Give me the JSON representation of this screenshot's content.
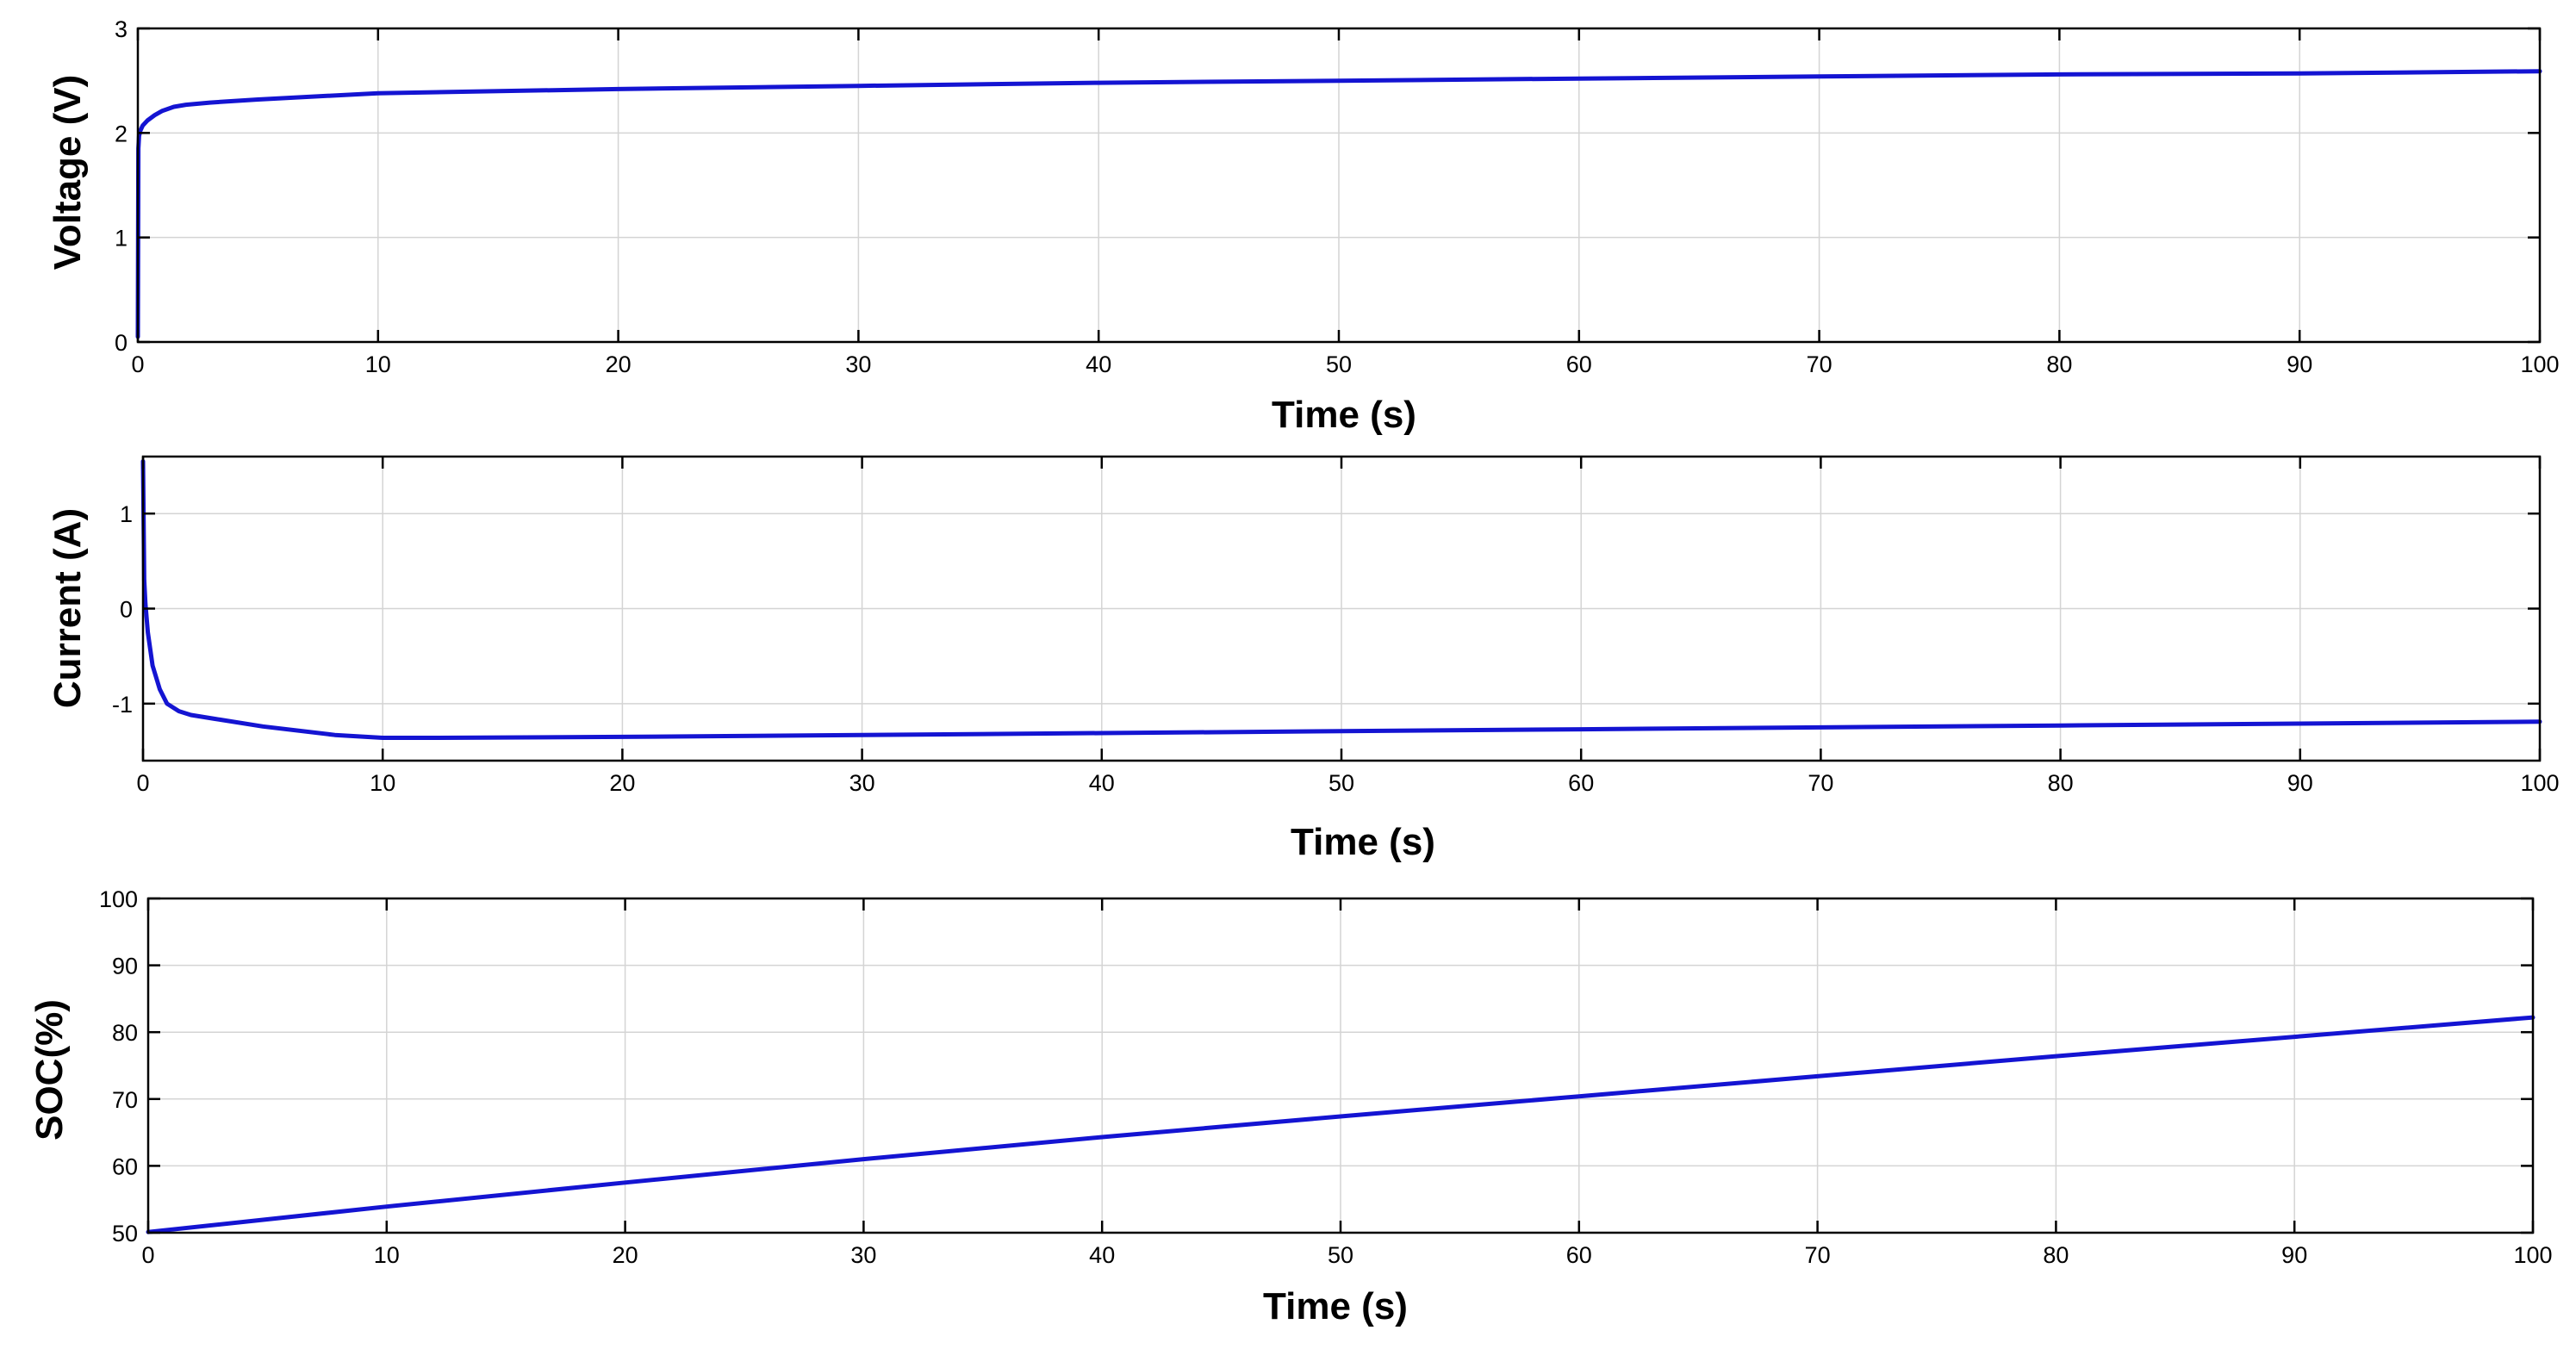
{
  "colors": {
    "series": "#1414d2",
    "grid": "#d4d4d4",
    "frame": "#000000"
  },
  "chart_data": [
    {
      "type": "line",
      "xlabel": "Time (s)",
      "ylabel": "Voltage (V)",
      "xlim": [
        0,
        100
      ],
      "ylim": [
        0,
        3
      ],
      "xticks": [
        0,
        10,
        20,
        30,
        40,
        50,
        60,
        70,
        80,
        90,
        100
      ],
      "yticks": [
        0,
        1,
        2,
        3
      ],
      "grid": true,
      "series": [
        {
          "x": [
            0,
            0.02,
            0.05,
            0.1,
            0.2,
            0.4,
            0.7,
            1,
            1.5,
            2,
            3,
            5,
            10,
            20,
            30,
            40,
            50,
            60,
            70,
            80,
            90,
            100
          ],
          "values": [
            0.05,
            1.85,
            1.97,
            2.02,
            2.07,
            2.12,
            2.17,
            2.21,
            2.25,
            2.27,
            2.29,
            2.32,
            2.38,
            2.42,
            2.45,
            2.48,
            2.5,
            2.52,
            2.54,
            2.56,
            2.57,
            2.59
          ]
        }
      ]
    },
    {
      "type": "line",
      "xlabel": "Time (s)",
      "ylabel": "Current (A)",
      "xlim": [
        0,
        100
      ],
      "ylim": [
        -1.6,
        1.6
      ],
      "xticks": [
        0,
        10,
        20,
        30,
        40,
        50,
        60,
        70,
        80,
        90,
        100
      ],
      "yticks": [
        -1,
        0,
        1
      ],
      "grid": true,
      "series": [
        {
          "x": [
            0,
            0.05,
            0.1,
            0.2,
            0.4,
            0.7,
            1,
            1.5,
            2,
            3,
            5,
            8,
            10,
            12,
            20,
            30,
            40,
            50,
            60,
            70,
            80,
            90,
            100
          ],
          "values": [
            1.55,
            0.3,
            0.05,
            -0.25,
            -0.6,
            -0.85,
            -1.0,
            -1.08,
            -1.12,
            -1.16,
            -1.24,
            -1.33,
            -1.36,
            -1.36,
            -1.35,
            -1.33,
            -1.31,
            -1.29,
            -1.27,
            -1.25,
            -1.23,
            -1.21,
            -1.19
          ]
        }
      ]
    },
    {
      "type": "line",
      "xlabel": "Time (s)",
      "ylabel": "SOC(%)",
      "xlim": [
        0,
        100
      ],
      "ylim": [
        50,
        100
      ],
      "xticks": [
        0,
        10,
        20,
        30,
        40,
        50,
        60,
        70,
        80,
        90,
        100
      ],
      "yticks": [
        50,
        60,
        70,
        80,
        90,
        100
      ],
      "grid": true,
      "series": [
        {
          "x": [
            0,
            10,
            20,
            30,
            40,
            50,
            60,
            70,
            80,
            90,
            100
          ],
          "values": [
            50.1,
            53.9,
            57.5,
            61.0,
            64.3,
            67.4,
            70.4,
            73.4,
            76.4,
            79.3,
            82.2
          ]
        }
      ]
    }
  ]
}
